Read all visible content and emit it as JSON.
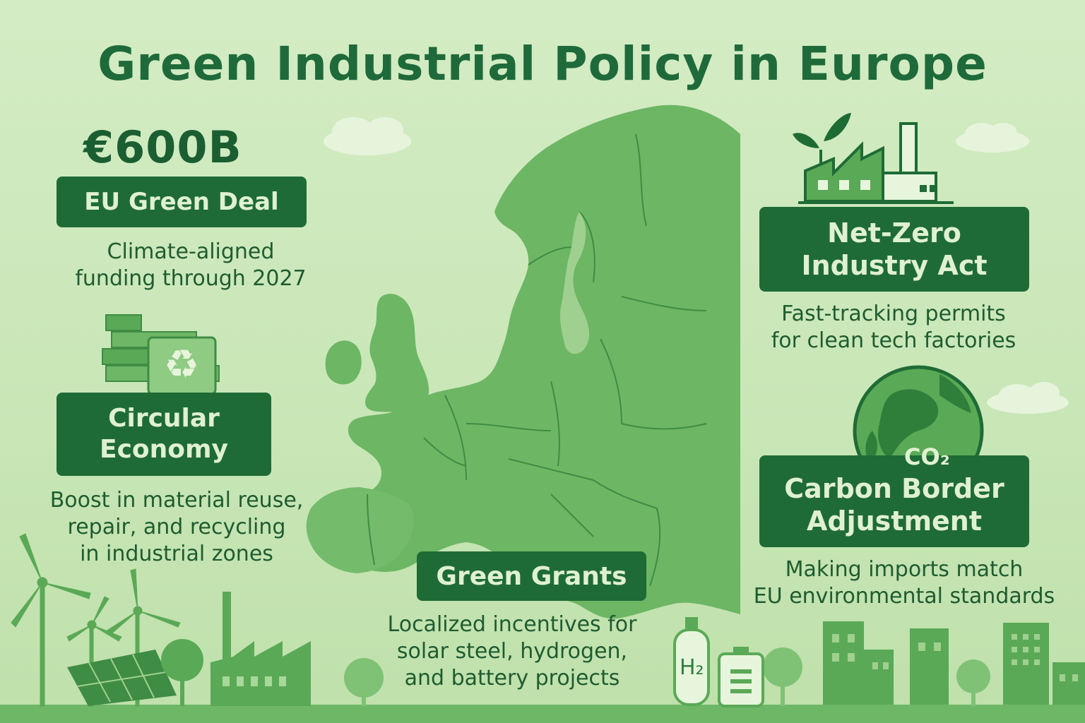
{
  "title": "Green Industrial Policy in Europe",
  "green_deal": {
    "amount": "€600B",
    "label": "EU Green Deal",
    "description_lines": [
      "Climate-aligned",
      "funding through 2027"
    ]
  },
  "circular": {
    "label_lines": [
      "Circular",
      "Economy"
    ],
    "description_lines": [
      "Boost in material reuse,",
      "repair, and recycling",
      "in industrial zones"
    ]
  },
  "net_zero": {
    "label_lines": [
      "Net-Zero",
      "Industry Act"
    ],
    "description_lines": [
      "Fast-tracking permits",
      "for clean tech factories"
    ]
  },
  "carbon_border": {
    "co2_text": "CO₂",
    "label_lines": [
      "Carbon Border",
      "Adjustment"
    ],
    "description_lines": [
      "Making imports match",
      "EU environmental standards"
    ]
  },
  "grants": {
    "label": "Green Grants",
    "description_lines": [
      "Localized incentives for",
      "solar steel, hydrogen,",
      "and battery projects"
    ]
  },
  "hydrogen_tank_text": "H₂",
  "colors": {
    "background": "#cde8bd",
    "dark_green": "#1f6b36",
    "map_green": "#6db766",
    "title_green": "#1f6a3a",
    "label_text": "#dff1cf"
  }
}
